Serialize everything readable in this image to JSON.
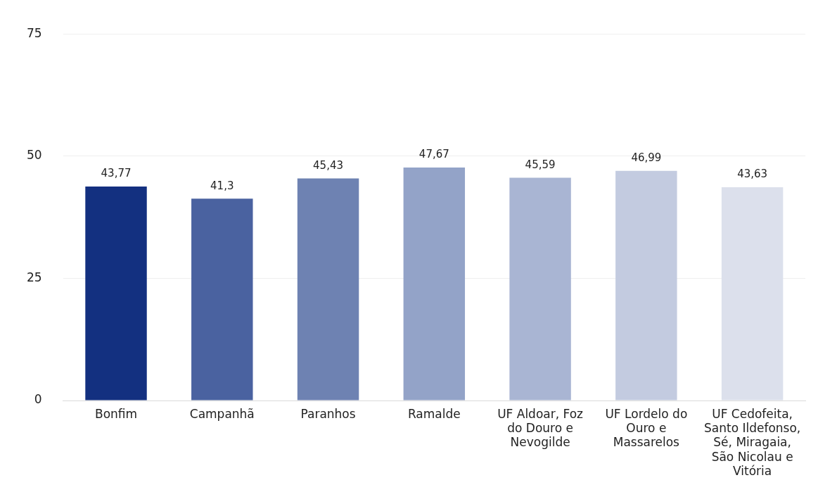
{
  "chart_data": {
    "type": "bar",
    "categories": [
      "Bonfim",
      "Campanhã",
      "Paranhos",
      "Ramalde",
      "UF Aldoar, Foz do Douro e Nevogilde",
      "UF Lordelo do Ouro e Massarelos",
      "UF Cedofeita, Santo Ildefonso, Sé, Miragaia, São Nicolau e Vitória"
    ],
    "values": [
      43.77,
      41.3,
      45.43,
      47.67,
      45.59,
      46.99,
      43.63
    ],
    "value_labels": [
      "43,77",
      "41,3",
      "45,43",
      "47,67",
      "45,59",
      "46,99",
      "43,63"
    ],
    "colors": [
      "#133080",
      "#4a62a0",
      "#6e82b2",
      "#93a3c8",
      "#a9b5d3",
      "#c3cbe0",
      "#dce0ec"
    ],
    "ylim": [
      0,
      75
    ],
    "yticks": [
      0,
      25,
      50,
      75
    ],
    "grid": "y",
    "legend": false
  }
}
